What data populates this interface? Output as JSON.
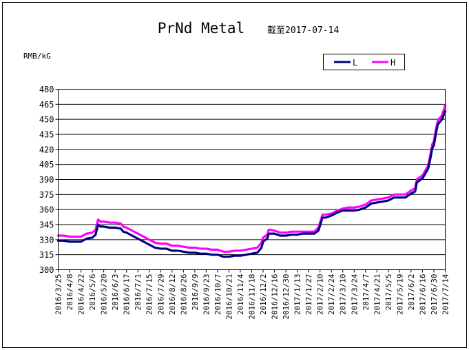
{
  "chart_data": {
    "type": "line",
    "title": "PrNd Metal",
    "subtitle": "截至2017-07-14",
    "ylabel": "RMB/kG",
    "xlabel": "",
    "ylim": [
      300,
      480
    ],
    "yticks": [
      300,
      315,
      330,
      345,
      360,
      375,
      390,
      405,
      420,
      435,
      450,
      465,
      480
    ],
    "grid": true,
    "legend_position": "top-right",
    "x_tick_labels": [
      "2016/3/25",
      "2016/4/8",
      "2016/4/22",
      "2016/5/6",
      "2016/5/20",
      "2016/6/3",
      "2016/6/17",
      "2016/7/1",
      "2016/7/15",
      "2016/7/29",
      "2016/8/12",
      "2016/8/26",
      "2016/9/9",
      "2016/9/23",
      "2016/10/7",
      "2016/10/21",
      "2016/11/4",
      "2016/11/18",
      "2016/12/2",
      "2016/12/16",
      "2016/12/30",
      "2017/1/13",
      "2017/1/27",
      "2017/2/10",
      "2017/2/24",
      "2017/3/10",
      "2017/3/24",
      "2017/4/7",
      "2017/4/21",
      "2017/5/5",
      "2017/5/19",
      "2017/6/2",
      "2017/6/16",
      "2017/6/30",
      "2017/7/14"
    ],
    "series": [
      {
        "name": "L",
        "color": "#000080",
        "points": [
          [
            "2016/3/25",
            329
          ],
          [
            "2016/4/1",
            329
          ],
          [
            "2016/4/8",
            328
          ],
          [
            "2016/4/15",
            328
          ],
          [
            "2016/4/22",
            328
          ],
          [
            "2016/4/29",
            331
          ],
          [
            "2016/5/6",
            332
          ],
          [
            "2016/5/10",
            335
          ],
          [
            "2016/5/13",
            345
          ],
          [
            "2016/5/16",
            343
          ],
          [
            "2016/5/20",
            343
          ],
          [
            "2016/5/27",
            342
          ],
          [
            "2016/6/3",
            342
          ],
          [
            "2016/6/10",
            341
          ],
          [
            "2016/6/13",
            338
          ],
          [
            "2016/6/17",
            337
          ],
          [
            "2016/6/24",
            334
          ],
          [
            "2016/7/1",
            331
          ],
          [
            "2016/7/8",
            328
          ],
          [
            "2016/7/15",
            325
          ],
          [
            "2016/7/22",
            322
          ],
          [
            "2016/7/29",
            321
          ],
          [
            "2016/8/5",
            321
          ],
          [
            "2016/8/12",
            319
          ],
          [
            "2016/8/19",
            319
          ],
          [
            "2016/8/26",
            318
          ],
          [
            "2016/9/2",
            317
          ],
          [
            "2016/9/9",
            317
          ],
          [
            "2016/9/16",
            316
          ],
          [
            "2016/9/23",
            316
          ],
          [
            "2016/9/30",
            315
          ],
          [
            "2016/10/7",
            315
          ],
          [
            "2016/10/14",
            313
          ],
          [
            "2016/10/21",
            313
          ],
          [
            "2016/10/28",
            314
          ],
          [
            "2016/11/4",
            314
          ],
          [
            "2016/11/11",
            315
          ],
          [
            "2016/11/18",
            316
          ],
          [
            "2016/11/25",
            317
          ],
          [
            "2016/11/30",
            322
          ],
          [
            "2016/12/2",
            328
          ],
          [
            "2016/12/7",
            331
          ],
          [
            "2016/12/9",
            336
          ],
          [
            "2016/12/16",
            336
          ],
          [
            "2016/12/23",
            334
          ],
          [
            "2016/12/30",
            334
          ],
          [
            "2017/1/6",
            335
          ],
          [
            "2017/1/13",
            335
          ],
          [
            "2017/1/20",
            336
          ],
          [
            "2017/1/27",
            336
          ],
          [
            "2017/2/3",
            336
          ],
          [
            "2017/2/8",
            339
          ],
          [
            "2017/2/10",
            344
          ],
          [
            "2017/2/13",
            352
          ],
          [
            "2017/2/17",
            352
          ],
          [
            "2017/2/24",
            354
          ],
          [
            "2017/3/3",
            357
          ],
          [
            "2017/3/10",
            359
          ],
          [
            "2017/3/17",
            359
          ],
          [
            "2017/3/24",
            359
          ],
          [
            "2017/3/31",
            360
          ],
          [
            "2017/4/7",
            362
          ],
          [
            "2017/4/14",
            366
          ],
          [
            "2017/4/21",
            367
          ],
          [
            "2017/4/28",
            368
          ],
          [
            "2017/5/5",
            369
          ],
          [
            "2017/5/12",
            372
          ],
          [
            "2017/5/19",
            372
          ],
          [
            "2017/5/26",
            372
          ],
          [
            "2017/6/2",
            376
          ],
          [
            "2017/6/7",
            378
          ],
          [
            "2017/6/9",
            387
          ],
          [
            "2017/6/14",
            390
          ],
          [
            "2017/6/16",
            391
          ],
          [
            "2017/6/21",
            398
          ],
          [
            "2017/6/23",
            401
          ],
          [
            "2017/6/26",
            412
          ],
          [
            "2017/6/28",
            421
          ],
          [
            "2017/6/30",
            424
          ],
          [
            "2017/7/3",
            438
          ],
          [
            "2017/7/5",
            445
          ],
          [
            "2017/7/10",
            450
          ],
          [
            "2017/7/14",
            458
          ]
        ]
      },
      {
        "name": "H",
        "color": "#ff00ff",
        "points": [
          [
            "2016/3/25",
            334
          ],
          [
            "2016/4/1",
            334
          ],
          [
            "2016/4/8",
            333
          ],
          [
            "2016/4/15",
            333
          ],
          [
            "2016/4/22",
            333
          ],
          [
            "2016/4/29",
            336
          ],
          [
            "2016/5/6",
            337
          ],
          [
            "2016/5/10",
            340
          ],
          [
            "2016/5/13",
            350
          ],
          [
            "2016/5/16",
            348
          ],
          [
            "2016/5/20",
            348
          ],
          [
            "2016/5/27",
            347
          ],
          [
            "2016/6/3",
            347
          ],
          [
            "2016/6/10",
            346
          ],
          [
            "2016/6/13",
            343
          ],
          [
            "2016/6/17",
            342
          ],
          [
            "2016/6/24",
            339
          ],
          [
            "2016/7/1",
            336
          ],
          [
            "2016/7/8",
            333
          ],
          [
            "2016/7/15",
            330
          ],
          [
            "2016/7/22",
            327
          ],
          [
            "2016/7/29",
            326
          ],
          [
            "2016/8/5",
            326
          ],
          [
            "2016/8/12",
            324
          ],
          [
            "2016/8/19",
            324
          ],
          [
            "2016/8/26",
            323
          ],
          [
            "2016/9/2",
            322
          ],
          [
            "2016/9/9",
            322
          ],
          [
            "2016/9/16",
            321
          ],
          [
            "2016/9/23",
            321
          ],
          [
            "2016/9/30",
            320
          ],
          [
            "2016/10/7",
            320
          ],
          [
            "2016/10/14",
            318
          ],
          [
            "2016/10/21",
            318
          ],
          [
            "2016/10/28",
            319
          ],
          [
            "2016/11/4",
            319
          ],
          [
            "2016/11/11",
            320
          ],
          [
            "2016/11/18",
            321
          ],
          [
            "2016/11/25",
            322
          ],
          [
            "2016/11/30",
            327
          ],
          [
            "2016/12/2",
            332
          ],
          [
            "2016/12/7",
            335
          ],
          [
            "2016/12/9",
            340
          ],
          [
            "2016/12/16",
            339
          ],
          [
            "2016/12/23",
            337
          ],
          [
            "2016/12/30",
            337
          ],
          [
            "2017/1/6",
            338
          ],
          [
            "2017/1/13",
            338
          ],
          [
            "2017/1/20",
            338
          ],
          [
            "2017/1/27",
            338
          ],
          [
            "2017/2/3",
            338
          ],
          [
            "2017/2/8",
            342
          ],
          [
            "2017/2/10",
            347
          ],
          [
            "2017/2/13",
            355
          ],
          [
            "2017/2/17",
            355
          ],
          [
            "2017/2/24",
            356
          ],
          [
            "2017/3/3",
            359
          ],
          [
            "2017/3/10",
            361
          ],
          [
            "2017/3/17",
            362
          ],
          [
            "2017/3/24",
            362
          ],
          [
            "2017/3/31",
            363
          ],
          [
            "2017/4/7",
            365
          ],
          [
            "2017/4/14",
            369
          ],
          [
            "2017/4/21",
            370
          ],
          [
            "2017/4/28",
            371
          ],
          [
            "2017/5/5",
            372
          ],
          [
            "2017/5/12",
            375
          ],
          [
            "2017/5/19",
            375
          ],
          [
            "2017/5/26",
            375
          ],
          [
            "2017/6/2",
            379
          ],
          [
            "2017/6/7",
            381
          ],
          [
            "2017/6/9",
            390
          ],
          [
            "2017/6/14",
            393
          ],
          [
            "2017/6/16",
            394
          ],
          [
            "2017/6/21",
            401
          ],
          [
            "2017/6/23",
            404
          ],
          [
            "2017/6/26",
            416
          ],
          [
            "2017/6/28",
            425
          ],
          [
            "2017/6/30",
            428
          ],
          [
            "2017/7/3",
            442
          ],
          [
            "2017/7/5",
            449
          ],
          [
            "2017/7/10",
            454
          ],
          [
            "2017/7/14",
            464
          ]
        ]
      }
    ]
  }
}
